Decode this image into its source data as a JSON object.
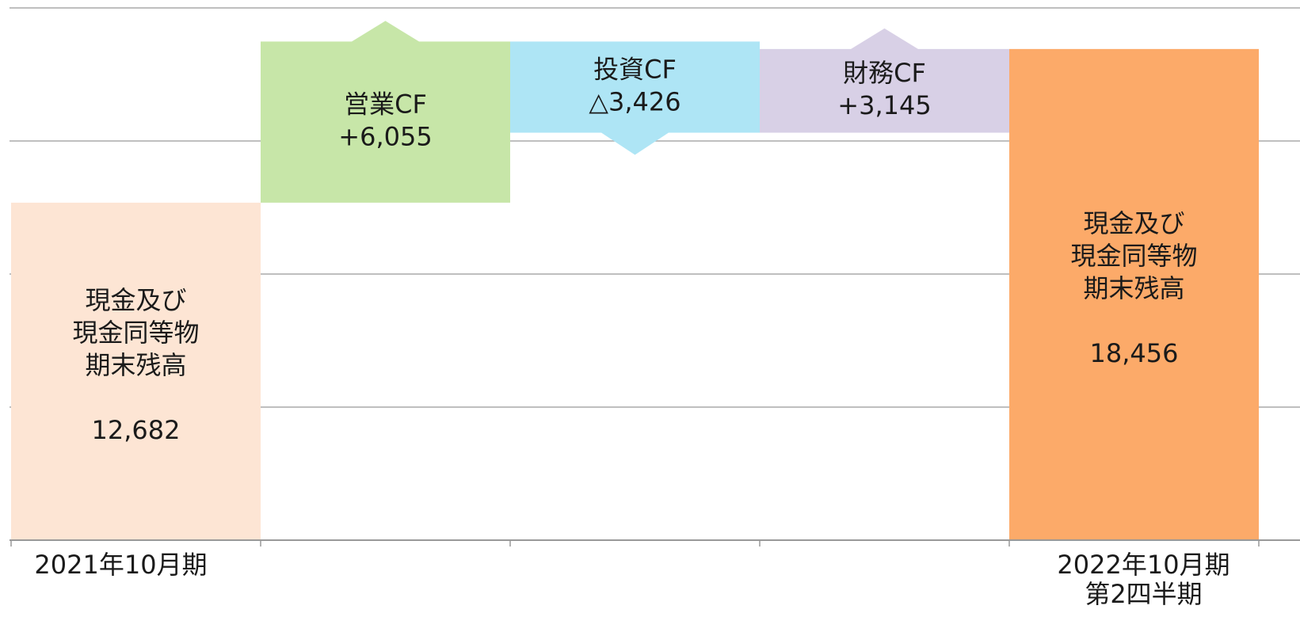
{
  "chart_data": {
    "type": "waterfall",
    "categories": [
      [
        "2021年10月期"
      ],
      null,
      null,
      null,
      [
        "2022年10月期",
        "第2四半期"
      ]
    ],
    "bar_labels": [
      [
        "現金及び",
        "現金同等物",
        "期末残高"
      ],
      [
        "営業CF"
      ],
      [
        "投資CF"
      ],
      [
        "財務CF"
      ],
      [
        "現金及び",
        "現金同等物",
        "期末残高"
      ]
    ],
    "values": [
      12682,
      6055,
      -3426,
      3145,
      18456
    ],
    "value_labels": [
      "12,682",
      "+6,055",
      "△3,426",
      "+3,145",
      "18,456"
    ],
    "kinds": [
      "total",
      "delta",
      "delta",
      "delta",
      "total"
    ],
    "colors": [
      "#fde5d4",
      "#c7e6a8",
      "#aee5f5",
      "#d8d0e6",
      "#fcaa69"
    ],
    "ylim": [
      0,
      20000
    ],
    "yticks": [
      0,
      5000,
      10000,
      15000,
      20000
    ],
    "grid": true
  }
}
